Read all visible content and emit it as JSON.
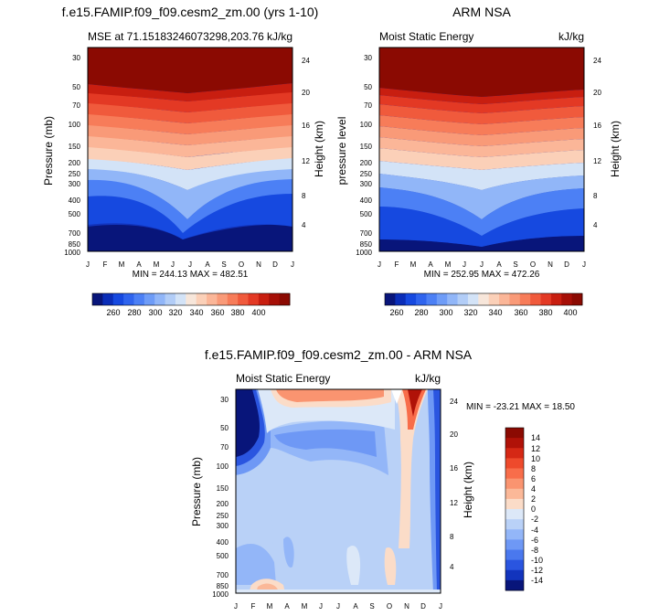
{
  "chart_data": [
    {
      "type": "heatmap",
      "title": "f.e15.FAMIP.f09_f09.cesm2_zm.00 (yrs 1-10)",
      "subtitle_left": "MSE at 71.15183246073298,203.76",
      "subtitle_right": "kJ/kg",
      "ylabel": "Pressure (mb)",
      "ylabel_right": "Height (km)",
      "x_ticks": [
        "J",
        "F",
        "M",
        "A",
        "M",
        "J",
        "J",
        "A",
        "S",
        "O",
        "N",
        "D",
        "J"
      ],
      "y_ticks": [
        "30",
        "50",
        "70",
        "100",
        "150",
        "200",
        "250",
        "300",
        "400",
        "500",
        "700",
        "850",
        "1000"
      ],
      "y_ticks_right": [
        "24",
        "20",
        "16",
        "12",
        "8",
        "4"
      ],
      "stats": "MIN = 244.13 MAX = 482.51"
    },
    {
      "type": "heatmap",
      "title": "ARM NSA",
      "subtitle_left": "Moist Static Energy",
      "subtitle_right": "kJ/kg",
      "ylabel": "pressure level",
      "ylabel_right": "Height (km)",
      "x_ticks": [
        "J",
        "F",
        "M",
        "A",
        "M",
        "J",
        "J",
        "A",
        "S",
        "O",
        "N",
        "D",
        "J"
      ],
      "y_ticks": [
        "30",
        "50",
        "70",
        "100",
        "150",
        "200",
        "250",
        "300",
        "400",
        "500",
        "700",
        "850",
        "1000"
      ],
      "y_ticks_right": [
        "24",
        "20",
        "16",
        "12",
        "8",
        "4"
      ],
      "stats": "MIN = 252.95 MAX = 472.26"
    },
    {
      "type": "heatmap",
      "title": "f.e15.FAMIP.f09_f09.cesm2_zm.00 - ARM NSA",
      "subtitle_left": "Moist Static Energy",
      "subtitle_right": "kJ/kg",
      "ylabel": "Pressure (mb)",
      "ylabel_right": "Height (km)",
      "x_ticks": [
        "J",
        "F",
        "M",
        "A",
        "M",
        "J",
        "J",
        "A",
        "S",
        "O",
        "N",
        "D",
        "J"
      ],
      "y_ticks": [
        "30",
        "50",
        "70",
        "100",
        "150",
        "200",
        "250",
        "300",
        "400",
        "500",
        "700",
        "850",
        "1000"
      ],
      "y_ticks_right": [
        "24",
        "20",
        "16",
        "12",
        "8",
        "4"
      ],
      "stats": "MIN = -23.21 MAX =  18.50"
    }
  ],
  "colorbar_top": {
    "labels": [
      "260",
      "280",
      "300",
      "320",
      "340",
      "360",
      "380",
      "400"
    ],
    "colors": [
      "#08157a",
      "#0a2db8",
      "#1649e0",
      "#2f64ee",
      "#4c80f5",
      "#6e9cf7",
      "#91b6f8",
      "#b2cdf7",
      "#d3e3f7",
      "#f7e6da",
      "#fbd0b8",
      "#fbb698",
      "#f99a78",
      "#f77c59",
      "#f05a3c",
      "#e33924",
      "#c81e10",
      "#a60f07",
      "#8b0a02"
    ]
  },
  "colorbar_bottom": {
    "labels": [
      "14",
      "12",
      "10",
      "8",
      "6",
      "4",
      "2",
      "0",
      "-2",
      "-4",
      "-6",
      "-8",
      "-10",
      "-12",
      "-14"
    ],
    "colors": [
      "#8b0a02",
      "#b01208",
      "#d52815",
      "#ee4a2c",
      "#f86d4a",
      "#fa9470",
      "#fbb898",
      "#fbdcc8",
      "#dce8f8",
      "#b9d1f7",
      "#93b6f8",
      "#6e98f5",
      "#4a78ee",
      "#2a55e0",
      "#1234bd",
      "#08157a"
    ]
  }
}
